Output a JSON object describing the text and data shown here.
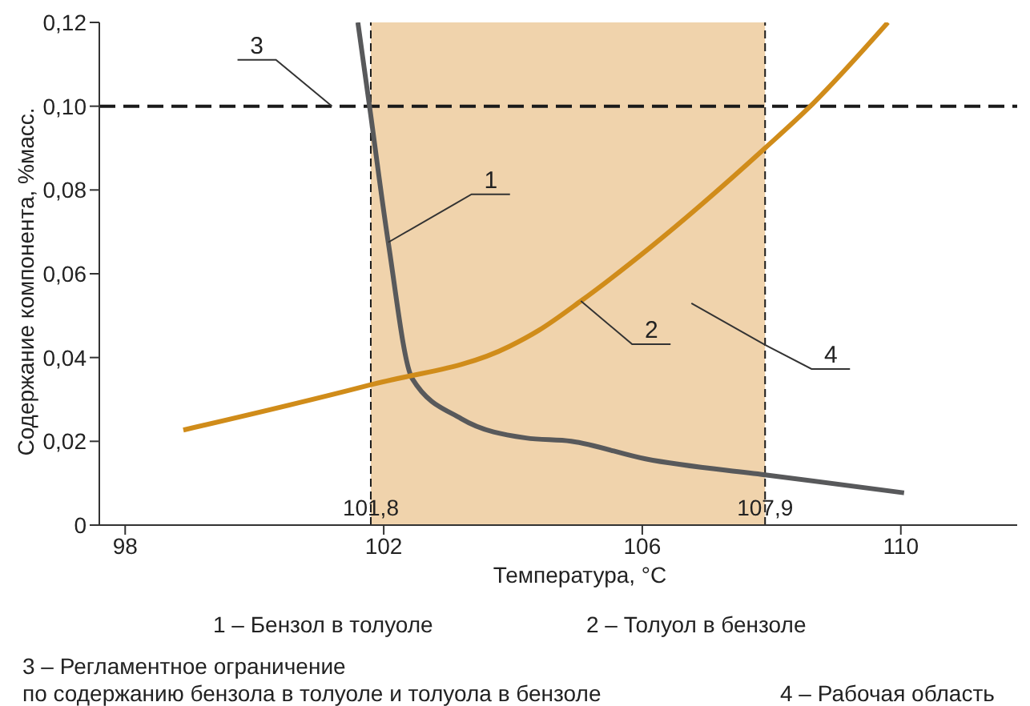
{
  "chart_data": {
    "type": "line",
    "xlabel": "Температура, °C",
    "ylabel": "Содержание компонента, %масс.",
    "xlim": [
      97.6,
      111.8
    ],
    "xticks": [
      98,
      102,
      106,
      110
    ],
    "ylim": [
      0,
      0.12
    ],
    "yticks": [
      {
        "value": 0,
        "label": "0"
      },
      {
        "value": 0.02,
        "label": "0,02"
      },
      {
        "value": 0.04,
        "label": "0,04"
      },
      {
        "value": 0.06,
        "label": "0,06"
      },
      {
        "value": 0.08,
        "label": "0,08"
      },
      {
        "value": 0.1,
        "label": "0,10"
      },
      {
        "value": 0.12,
        "label": "0,12"
      }
    ],
    "marker": "none",
    "line_style": "solid",
    "series": [
      {
        "color": "#58595b",
        "x": [
          101.6,
          101.78,
          102.07,
          102.44,
          103.2,
          104.2,
          104.9,
          106.05,
          107.9,
          110.05
        ],
        "values": [
          0.12,
          0.1,
          0.0675,
          0.035,
          0.0254,
          0.0208,
          0.02,
          0.0158,
          0.012,
          0.0077
        ]
      },
      {
        "color": "#d08c1a",
        "x": [
          98.9,
          101.8,
          103.95,
          104.4,
          105.05,
          106.1,
          107.9,
          108.6,
          109.8
        ],
        "values": [
          0.0227,
          0.0335,
          0.0427,
          0.0465,
          0.0535,
          0.066,
          0.09,
          0.1,
          0.12
        ]
      }
    ],
    "ref_lines": [
      {
        "axis": "y",
        "value": 0.1,
        "label": null,
        "color": "#1a1a1a",
        "line_style": "dashed"
      },
      {
        "axis": "x",
        "value": 101.8,
        "label": "101,8",
        "color": "#1a1a1a",
        "line_style": "dashed"
      },
      {
        "axis": "x",
        "value": 107.9,
        "label": "107,9",
        "color": "#1a1a1a",
        "line_style": "dashed"
      }
    ],
    "bands": [
      {
        "axis": "x",
        "from": 101.8,
        "to": 107.9,
        "label": null,
        "color": "#f0d3ac"
      }
    ],
    "annotations": [
      {
        "text": "1",
        "x": 102.07,
        "y": 0.0675
      },
      {
        "text": "2",
        "x": 105.05,
        "y": 0.0535
      },
      {
        "text": "3",
        "x": 101.2,
        "y": 0.1
      },
      {
        "text": "4",
        "x": 107.9,
        "y": 0.043
      },
      "1 – Бензол в толуоле",
      "2 – Толуол в бензоле",
      "3 – Регламентное ограничение\nпо содержанию бензола в толуоле и толуола в бензоле",
      "4 – Рабочая область"
    ]
  }
}
